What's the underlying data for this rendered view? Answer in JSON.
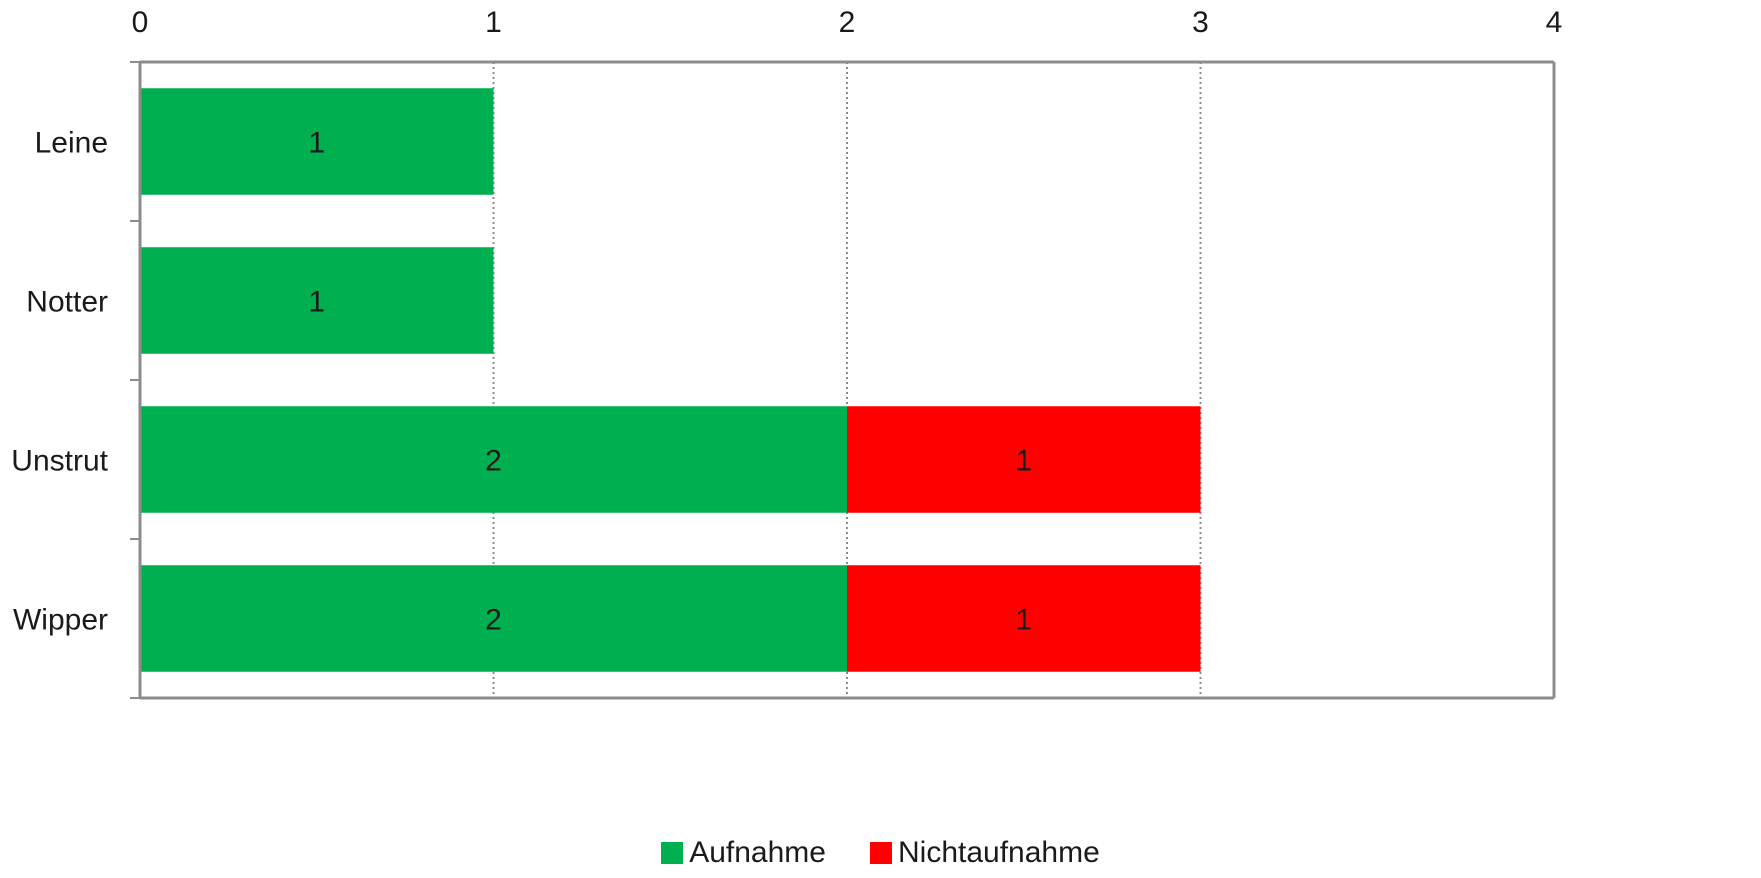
{
  "chart_data": {
    "type": "bar",
    "orientation": "horizontal",
    "stacked": true,
    "categories": [
      "Leine",
      "Notter",
      "Unstrut",
      "Wipper"
    ],
    "series": [
      {
        "name": "Aufnahme",
        "values": [
          1,
          1,
          2,
          2
        ],
        "color": "#00AF50"
      },
      {
        "name": "Nichtaufnahme",
        "values": [
          0,
          0,
          1,
          1
        ],
        "color": "#FF0000"
      }
    ],
    "xlim": [
      0,
      4
    ],
    "xticks": [
      "0",
      "1",
      "2",
      "3",
      "4"
    ],
    "x_axis_position": "top",
    "grid": "vertical-dotted",
    "legend_position": "bottom-center",
    "data_labels": true,
    "title": "",
    "xlabel": "",
    "ylabel": ""
  }
}
